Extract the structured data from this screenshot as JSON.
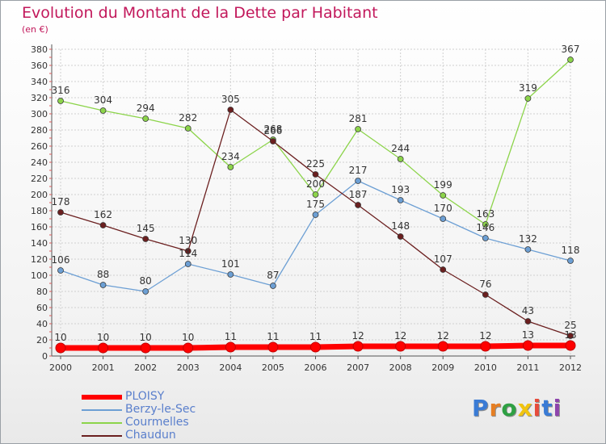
{
  "title": "Evolution du Montant de la Dette par Habitant",
  "subtitle": "(en €)",
  "logo_text": "Proxiti",
  "colors": {
    "title": "#c2185b",
    "PLOISY": "#ff0000",
    "Berzy-le-Sec": "#6c9fd4",
    "Courmelles": "#8cd44a",
    "Chaudun": "#6b1f1f",
    "grid": "#d0d0d0",
    "axis": "#555555"
  },
  "chart_data": {
    "type": "line",
    "title": "Evolution du Montant de la Dette par Habitant",
    "ylabel": "(en €)",
    "ylim": [
      0,
      380
    ],
    "yticks": [
      0,
      20,
      40,
      60,
      80,
      100,
      120,
      140,
      160,
      180,
      200,
      220,
      240,
      260,
      280,
      300,
      320,
      340,
      360,
      380
    ],
    "x": [
      "2000",
      "2001",
      "2002",
      "2003",
      "2004",
      "2005",
      "2006",
      "2007",
      "2008",
      "2009",
      "2010",
      "2011",
      "2012"
    ],
    "grid": true,
    "legend": "bottom-left",
    "series": [
      {
        "name": "PLOISY",
        "values": [
          10,
          10,
          10,
          10,
          11,
          11,
          11,
          12,
          12,
          12,
          12,
          13,
          13
        ]
      },
      {
        "name": "Berzy-le-Sec",
        "values": [
          106,
          88,
          80,
          114,
          101,
          87,
          175,
          217,
          193,
          170,
          146,
          132,
          118
        ]
      },
      {
        "name": "Courmelles",
        "values": [
          316,
          304,
          294,
          282,
          234,
          268,
          200,
          281,
          244,
          199,
          163,
          319,
          367
        ]
      },
      {
        "name": "Chaudun",
        "values": [
          178,
          162,
          145,
          130,
          305,
          266,
          225,
          187,
          148,
          107,
          76,
          43,
          25
        ]
      }
    ]
  }
}
